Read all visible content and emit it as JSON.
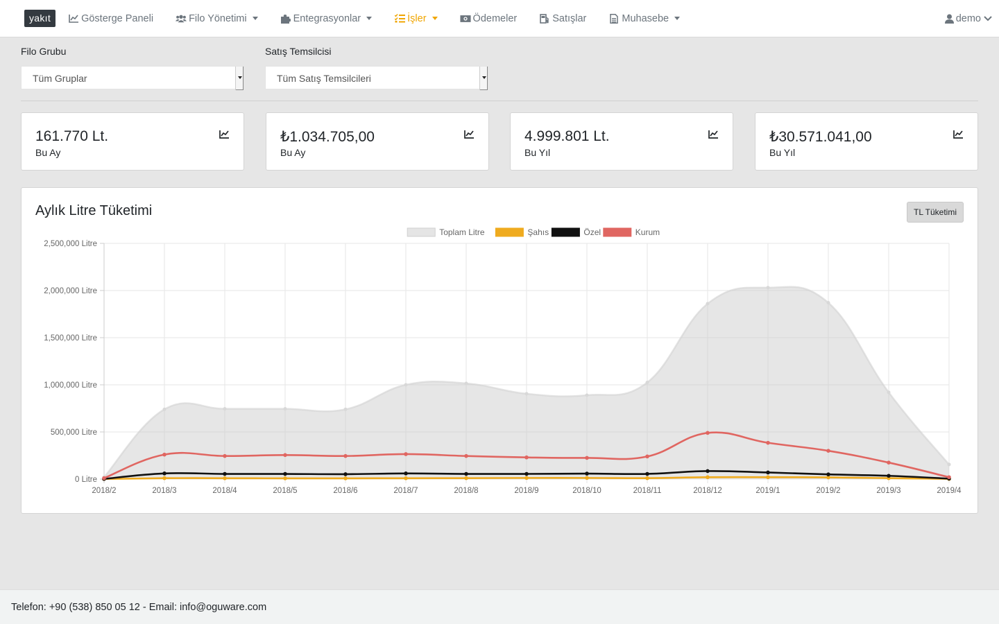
{
  "navbar": {
    "brand": "yakıt",
    "items": [
      {
        "label": "Gösterge Paneli",
        "icon": "chart-line-icon",
        "dropdown": false,
        "active": false
      },
      {
        "label": "Filo Yönetimi",
        "icon": "users-icon",
        "dropdown": true,
        "active": false
      },
      {
        "label": "Entegrasyonlar",
        "icon": "puzzle-icon",
        "dropdown": true,
        "active": false
      },
      {
        "label": "İşler",
        "icon": "tasks-icon",
        "dropdown": true,
        "active": true
      },
      {
        "label": "Ödemeler",
        "icon": "money-bill-icon",
        "dropdown": false,
        "active": false
      },
      {
        "label": "Satışlar",
        "icon": "gas-pump-icon",
        "dropdown": false,
        "active": false
      },
      {
        "label": "Muhasebe",
        "icon": "file-icon",
        "dropdown": true,
        "active": false
      }
    ],
    "user": "demo",
    "active_color": "#f0a500"
  },
  "filters": {
    "group_label": "Filo Grubu",
    "group_value": "Tüm Gruplar",
    "rep_label": "Satış Temsilcisi",
    "rep_value": "Tüm Satış Temsilcileri"
  },
  "stats": [
    {
      "value": "161.770 Lt.",
      "label": "Bu Ay"
    },
    {
      "value": "₺1.034.705,00",
      "label": "Bu Ay"
    },
    {
      "value": "4.999.801 Lt.",
      "label": "Bu Yıl"
    },
    {
      "value": "₺30.571.041,00",
      "label": "Bu Yıl"
    }
  ],
  "chart_card": {
    "title": "Aylık Litre Tüketimi",
    "toggle_button": "TL Tüketimi"
  },
  "chart_data": {
    "type": "line",
    "x": [
      "2018/2",
      "2018/3",
      "2018/4",
      "2018/5",
      "2018/6",
      "2018/7",
      "2018/8",
      "2018/9",
      "2018/10",
      "2018/11",
      "2018/12",
      "2019/1",
      "2019/2",
      "2019/3",
      "2019/4"
    ],
    "ylim": [
      0,
      2500000
    ],
    "yticks": [
      0,
      500000,
      1000000,
      1500000,
      2000000,
      2500000
    ],
    "ytick_labels": [
      "0 Litre",
      "500,000 Litre",
      "1,000,000 Litre",
      "1,500,000 Litre",
      "2,000,000 Litre",
      "2,500,000 Litre"
    ],
    "legend_position": "top",
    "grid": true,
    "series": [
      {
        "name": "Toplam Litre",
        "color": "#e5e5e5",
        "fill": true,
        "values": [
          20000,
          740000,
          745000,
          745000,
          740000,
          1000000,
          1015000,
          905000,
          890000,
          1025000,
          1860000,
          2030000,
          1870000,
          920000,
          155000
        ]
      },
      {
        "name": "Şahıs",
        "color": "#efab1f",
        "fill": false,
        "values": [
          1000,
          10000,
          9000,
          8000,
          8000,
          9000,
          10000,
          12000,
          12000,
          10000,
          20000,
          20000,
          18000,
          10000,
          2000
        ]
      },
      {
        "name": "Özel",
        "color": "#111111",
        "fill": false,
        "values": [
          2000,
          60000,
          55000,
          55000,
          52000,
          60000,
          55000,
          55000,
          58000,
          55000,
          85000,
          70000,
          50000,
          35000,
          5000
        ]
      },
      {
        "name": "Kurum",
        "color": "#e06661",
        "fill": false,
        "values": [
          10000,
          260000,
          245000,
          255000,
          245000,
          265000,
          245000,
          230000,
          225000,
          240000,
          490000,
          385000,
          300000,
          175000,
          20000
        ]
      }
    ]
  },
  "footer": {
    "text": "Telefon: +90 (538) 850 05 12 - Email: info@oguware.com"
  }
}
